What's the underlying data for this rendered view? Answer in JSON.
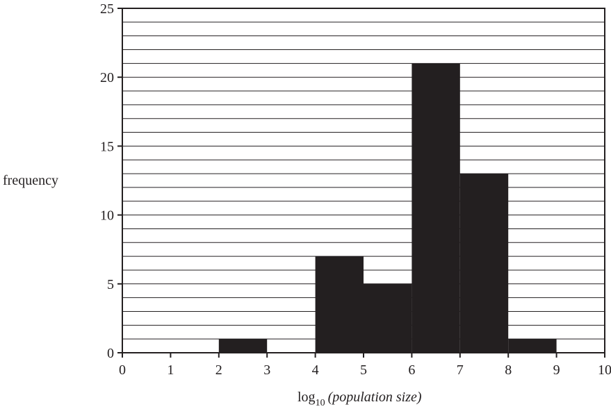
{
  "chart_data": {
    "type": "bar",
    "histogram": true,
    "x_bins": [
      [
        0,
        1
      ],
      [
        1,
        2
      ],
      [
        2,
        3
      ],
      [
        3,
        4
      ],
      [
        4,
        5
      ],
      [
        5,
        6
      ],
      [
        6,
        7
      ],
      [
        7,
        8
      ],
      [
        8,
        9
      ],
      [
        9,
        10
      ]
    ],
    "values": [
      0,
      0,
      1,
      0,
      7,
      5,
      21,
      13,
      1,
      0
    ],
    "x_ticks": [
      "0",
      "1",
      "2",
      "3",
      "4",
      "5",
      "6",
      "7",
      "8",
      "9",
      "10"
    ],
    "y_ticks": [
      "0",
      "5",
      "10",
      "15",
      "20",
      "25"
    ],
    "xlim": [
      0,
      10
    ],
    "ylim": [
      0,
      25
    ],
    "xlabel": {
      "prefix": "log",
      "subscript": "10",
      "italic": "(population size)"
    },
    "ylabel": "frequency",
    "grid": true,
    "grid_step": 1,
    "bar_color": "#231f20",
    "grid_color": "#231f20"
  }
}
